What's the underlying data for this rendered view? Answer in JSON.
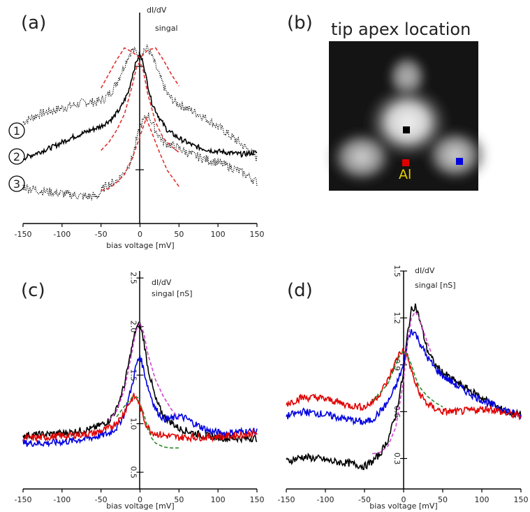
{
  "panels": {
    "a": {
      "label": "(a)",
      "ylabel_line1": "dI/dV",
      "ylabel_line2": "singal",
      "xlabel": "bias voltage [mV]",
      "markers": [
        "1",
        "2",
        "3"
      ]
    },
    "b": {
      "label": "(b)",
      "title": "tip apex location",
      "site_label": "Al"
    },
    "c": {
      "label": "(c)",
      "ylabel_line1": "dI/dV",
      "ylabel_line2": "singal [nS]",
      "xlabel": "bias voltage [mV]"
    },
    "d": {
      "label": "(d)",
      "ylabel_line1": "dI/dV",
      "ylabel_line2": "singal [nS]",
      "xlabel": "bias voltage [mV]"
    }
  },
  "colors": {
    "black": "#000000",
    "red": "#e00000",
    "blue": "#0000e0",
    "fit_red": "#e03030",
    "fit_green": "#2a8a2a",
    "fit_magenta": "#cc44cc",
    "al": "#e6d000"
  },
  "chart_data": [
    {
      "type": "line",
      "panel": "a",
      "xlabel": "bias voltage [mV]",
      "ylabel": "dI/dV singal",
      "xlim": [
        -150,
        150
      ],
      "xticks": [
        -150,
        -100,
        -50,
        0,
        50,
        100,
        150
      ],
      "series": [
        {
          "style": "dotted",
          "color": "#000000",
          "x": [
            -150,
            -130,
            -110,
            -90,
            -70,
            -55,
            -45,
            -35,
            -25,
            -15,
            -10,
            -5,
            0,
            5,
            10,
            15,
            25,
            35,
            45,
            60,
            80,
            100,
            120,
            140,
            150
          ],
          "y": [
            0.6,
            0.64,
            0.66,
            0.68,
            0.7,
            0.7,
            0.72,
            0.76,
            0.84,
            0.93,
            0.96,
            0.95,
            0.93,
            0.96,
            0.97,
            0.93,
            0.83,
            0.74,
            0.7,
            0.67,
            0.63,
            0.58,
            0.52,
            0.46,
            0.42
          ]
        },
        {
          "style": "solid",
          "color": "#000000",
          "x": [
            -150,
            -130,
            -110,
            -90,
            -70,
            -50,
            -35,
            -25,
            -15,
            -8,
            -4,
            0,
            4,
            8,
            15,
            25,
            35,
            50,
            70,
            90,
            110,
            130,
            150
          ],
          "y": [
            0.42,
            0.45,
            0.48,
            0.52,
            0.55,
            0.58,
            0.62,
            0.67,
            0.75,
            0.86,
            0.91,
            0.93,
            0.9,
            0.82,
            0.7,
            0.62,
            0.56,
            0.52,
            0.48,
            0.46,
            0.45,
            0.44,
            0.45
          ]
        },
        {
          "style": "dotted",
          "color": "#000000",
          "x": [
            -150,
            -130,
            -110,
            -90,
            -70,
            -55,
            -45,
            -30,
            -20,
            -10,
            0,
            10,
            20,
            30,
            45,
            60,
            80,
            100,
            120,
            140,
            150
          ],
          "y": [
            0.28,
            0.26,
            0.25,
            0.24,
            0.23,
            0.23,
            0.28,
            0.31,
            0.35,
            0.42,
            0.58,
            0.64,
            0.56,
            0.5,
            0.48,
            0.45,
            0.42,
            0.4,
            0.37,
            0.33,
            0.3
          ]
        }
      ],
      "fits": [
        {
          "color": "#e03030",
          "x": [
            -50,
            -40,
            -30,
            -20,
            -10,
            0,
            10,
            20,
            30,
            40,
            50
          ],
          "y": [
            0.77,
            0.84,
            0.91,
            0.97,
            0.95,
            0.92,
            0.96,
            0.97,
            0.91,
            0.84,
            0.78
          ]
        },
        {
          "color": "#e03030",
          "x": [
            -50,
            -40,
            -30,
            -20,
            -10,
            -4,
            0,
            4,
            10,
            20,
            30,
            40,
            50
          ],
          "y": [
            0.46,
            0.5,
            0.56,
            0.64,
            0.78,
            0.88,
            0.9,
            0.86,
            0.74,
            0.6,
            0.52,
            0.48,
            0.45
          ]
        },
        {
          "color": "#e03030",
          "x": [
            -50,
            -40,
            -30,
            -20,
            -10,
            0,
            8,
            16,
            25,
            35,
            50
          ],
          "y": [
            0.26,
            0.27,
            0.3,
            0.34,
            0.42,
            0.53,
            0.62,
            0.54,
            0.45,
            0.36,
            0.28
          ]
        }
      ]
    },
    {
      "type": "line",
      "panel": "c",
      "xlabel": "bias voltage [mV]",
      "ylabel": "dI/dV singal [nS]",
      "xlim": [
        -150,
        150
      ],
      "ylim": [
        0.4,
        2.5
      ],
      "xticks": [
        -150,
        -100,
        -50,
        0,
        50,
        100,
        150
      ],
      "yticks": [
        0.5,
        1.0,
        1.5,
        2.0,
        2.5
      ],
      "series": [
        {
          "color": "#000000",
          "x": [
            -150,
            -120,
            -90,
            -60,
            -40,
            -30,
            -20,
            -10,
            -5,
            0,
            5,
            10,
            20,
            30,
            50,
            80,
            110,
            150
          ],
          "y": [
            0.88,
            0.89,
            0.91,
            0.95,
            1.03,
            1.15,
            1.4,
            1.8,
            1.98,
            2.02,
            1.85,
            1.58,
            1.25,
            1.08,
            0.95,
            0.88,
            0.85,
            0.85
          ]
        },
        {
          "color": "#0000e0",
          "x": [
            -150,
            -120,
            -90,
            -60,
            -40,
            -30,
            -20,
            -10,
            -5,
            0,
            5,
            10,
            20,
            30,
            40,
            50,
            60,
            70,
            90,
            110,
            130,
            150
          ],
          "y": [
            0.8,
            0.8,
            0.82,
            0.86,
            0.9,
            0.96,
            1.1,
            1.4,
            1.6,
            1.7,
            1.55,
            1.38,
            1.15,
            1.05,
            1.05,
            1.08,
            1.05,
            1.0,
            0.92,
            0.9,
            0.92,
            0.92
          ]
        },
        {
          "color": "#e00000",
          "x": [
            -150,
            -120,
            -90,
            -60,
            -40,
            -25,
            -15,
            -8,
            -3,
            0,
            5,
            10,
            15,
            20,
            30,
            50,
            80,
            110,
            150
          ],
          "y": [
            0.85,
            0.86,
            0.88,
            0.9,
            0.95,
            1.05,
            1.2,
            1.28,
            1.25,
            1.18,
            1.05,
            0.96,
            0.92,
            0.9,
            0.88,
            0.86,
            0.86,
            0.87,
            0.9
          ]
        }
      ],
      "fits": [
        {
          "color": "#cc44cc",
          "x": [
            -40,
            -30,
            -20,
            -10,
            -5,
            0,
            5,
            10,
            20,
            30,
            40,
            50
          ],
          "y": [
            1.03,
            1.13,
            1.35,
            1.75,
            1.96,
            2.04,
            1.93,
            1.72,
            1.45,
            1.28,
            1.15,
            1.05
          ]
        },
        {
          "color": "#2a8a2a",
          "x": [
            -30,
            -20,
            -10,
            -3,
            5,
            10,
            15,
            20,
            30,
            40,
            50
          ],
          "y": [
            1.07,
            1.18,
            1.27,
            1.27,
            1.1,
            0.95,
            0.85,
            0.8,
            0.76,
            0.75,
            0.75
          ]
        }
      ]
    },
    {
      "type": "line",
      "panel": "d",
      "xlabel": "bias voltage [mV]",
      "ylabel": "dI/dV singal [nS]",
      "xlim": [
        -150,
        150
      ],
      "ylim": [
        0.15,
        1.5
      ],
      "xticks": [
        -150,
        -100,
        -50,
        0,
        50,
        100,
        150
      ],
      "yticks": [
        0.3,
        0.6,
        0.9,
        1.2,
        1.5
      ],
      "series": [
        {
          "color": "#000000",
          "x": [
            -150,
            -130,
            -110,
            -90,
            -70,
            -50,
            -40,
            -30,
            -20,
            -10,
            0,
            5,
            10,
            15,
            20,
            30,
            40,
            50,
            70,
            90,
            110,
            130,
            150
          ],
          "y": [
            0.28,
            0.31,
            0.3,
            0.28,
            0.27,
            0.25,
            0.28,
            0.33,
            0.42,
            0.58,
            0.85,
            1.1,
            1.25,
            1.28,
            1.2,
            1.0,
            0.9,
            0.85,
            0.78,
            0.72,
            0.66,
            0.6,
            0.58
          ]
        },
        {
          "color": "#0000e0",
          "x": [
            -150,
            -130,
            -110,
            -90,
            -70,
            -50,
            -40,
            -30,
            -20,
            -10,
            0,
            5,
            10,
            15,
            20,
            30,
            40,
            50,
            70,
            90,
            110,
            130,
            150
          ],
          "y": [
            0.57,
            0.6,
            0.59,
            0.57,
            0.55,
            0.53,
            0.55,
            0.6,
            0.66,
            0.76,
            0.9,
            1.05,
            1.12,
            1.1,
            1.05,
            0.95,
            0.88,
            0.83,
            0.76,
            0.7,
            0.65,
            0.61,
            0.57
          ]
        },
        {
          "color": "#e00000",
          "x": [
            -150,
            -130,
            -110,
            -90,
            -70,
            -50,
            -40,
            -30,
            -20,
            -10,
            -5,
            0,
            5,
            10,
            15,
            20,
            30,
            40,
            50,
            70,
            90,
            110,
            130,
            150
          ],
          "y": [
            0.65,
            0.69,
            0.69,
            0.67,
            0.64,
            0.63,
            0.66,
            0.72,
            0.8,
            0.92,
            0.98,
            0.99,
            0.95,
            0.86,
            0.78,
            0.72,
            0.65,
            0.62,
            0.6,
            0.6,
            0.61,
            0.62,
            0.59,
            0.57
          ]
        }
      ],
      "fits": [
        {
          "color": "#cc44cc",
          "x": [
            -40,
            -30,
            -20,
            -10,
            0,
            5,
            10,
            15,
            20,
            25,
            30,
            35
          ],
          "y": [
            0.33,
            0.34,
            0.38,
            0.5,
            0.8,
            1.05,
            1.2,
            1.24,
            1.2,
            1.12,
            1.05,
            0.98
          ]
        },
        {
          "color": "#2a8a2a",
          "x": [
            -40,
            -30,
            -20,
            -10,
            -5,
            0,
            5,
            10,
            15,
            20,
            30,
            40,
            50
          ],
          "y": [
            0.67,
            0.72,
            0.78,
            0.9,
            0.96,
            0.99,
            0.96,
            0.9,
            0.82,
            0.76,
            0.7,
            0.66,
            0.63
          ]
        }
      ]
    }
  ]
}
